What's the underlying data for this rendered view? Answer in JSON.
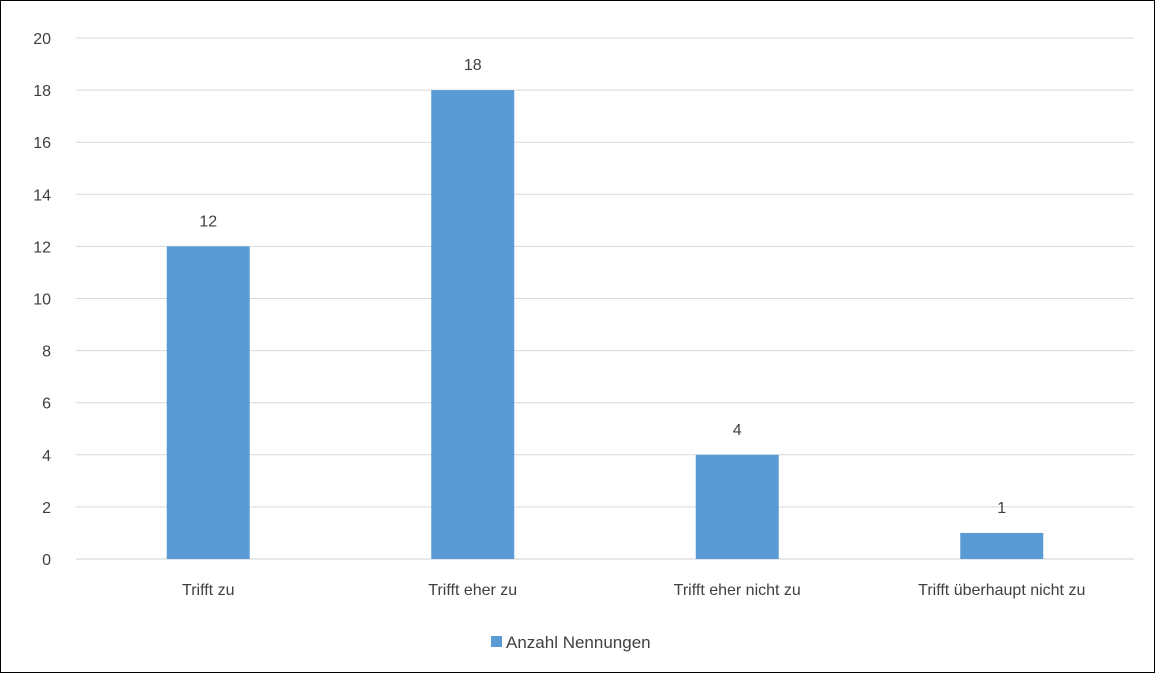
{
  "chart_data": {
    "type": "bar",
    "categories": [
      "Trifft zu",
      "Trifft eher zu",
      "Trifft eher nicht zu",
      "Trifft überhaupt nicht zu"
    ],
    "series": [
      {
        "name": "Anzahl Nennungen",
        "values": [
          12,
          18,
          4,
          1
        ],
        "color": "#5B9BD5"
      }
    ],
    "ylim": [
      0,
      20
    ],
    "yticks": [
      0,
      2,
      4,
      6,
      8,
      10,
      12,
      14,
      16,
      18,
      20
    ],
    "grid": true,
    "legend": "bottom-center",
    "data_labels": true
  }
}
